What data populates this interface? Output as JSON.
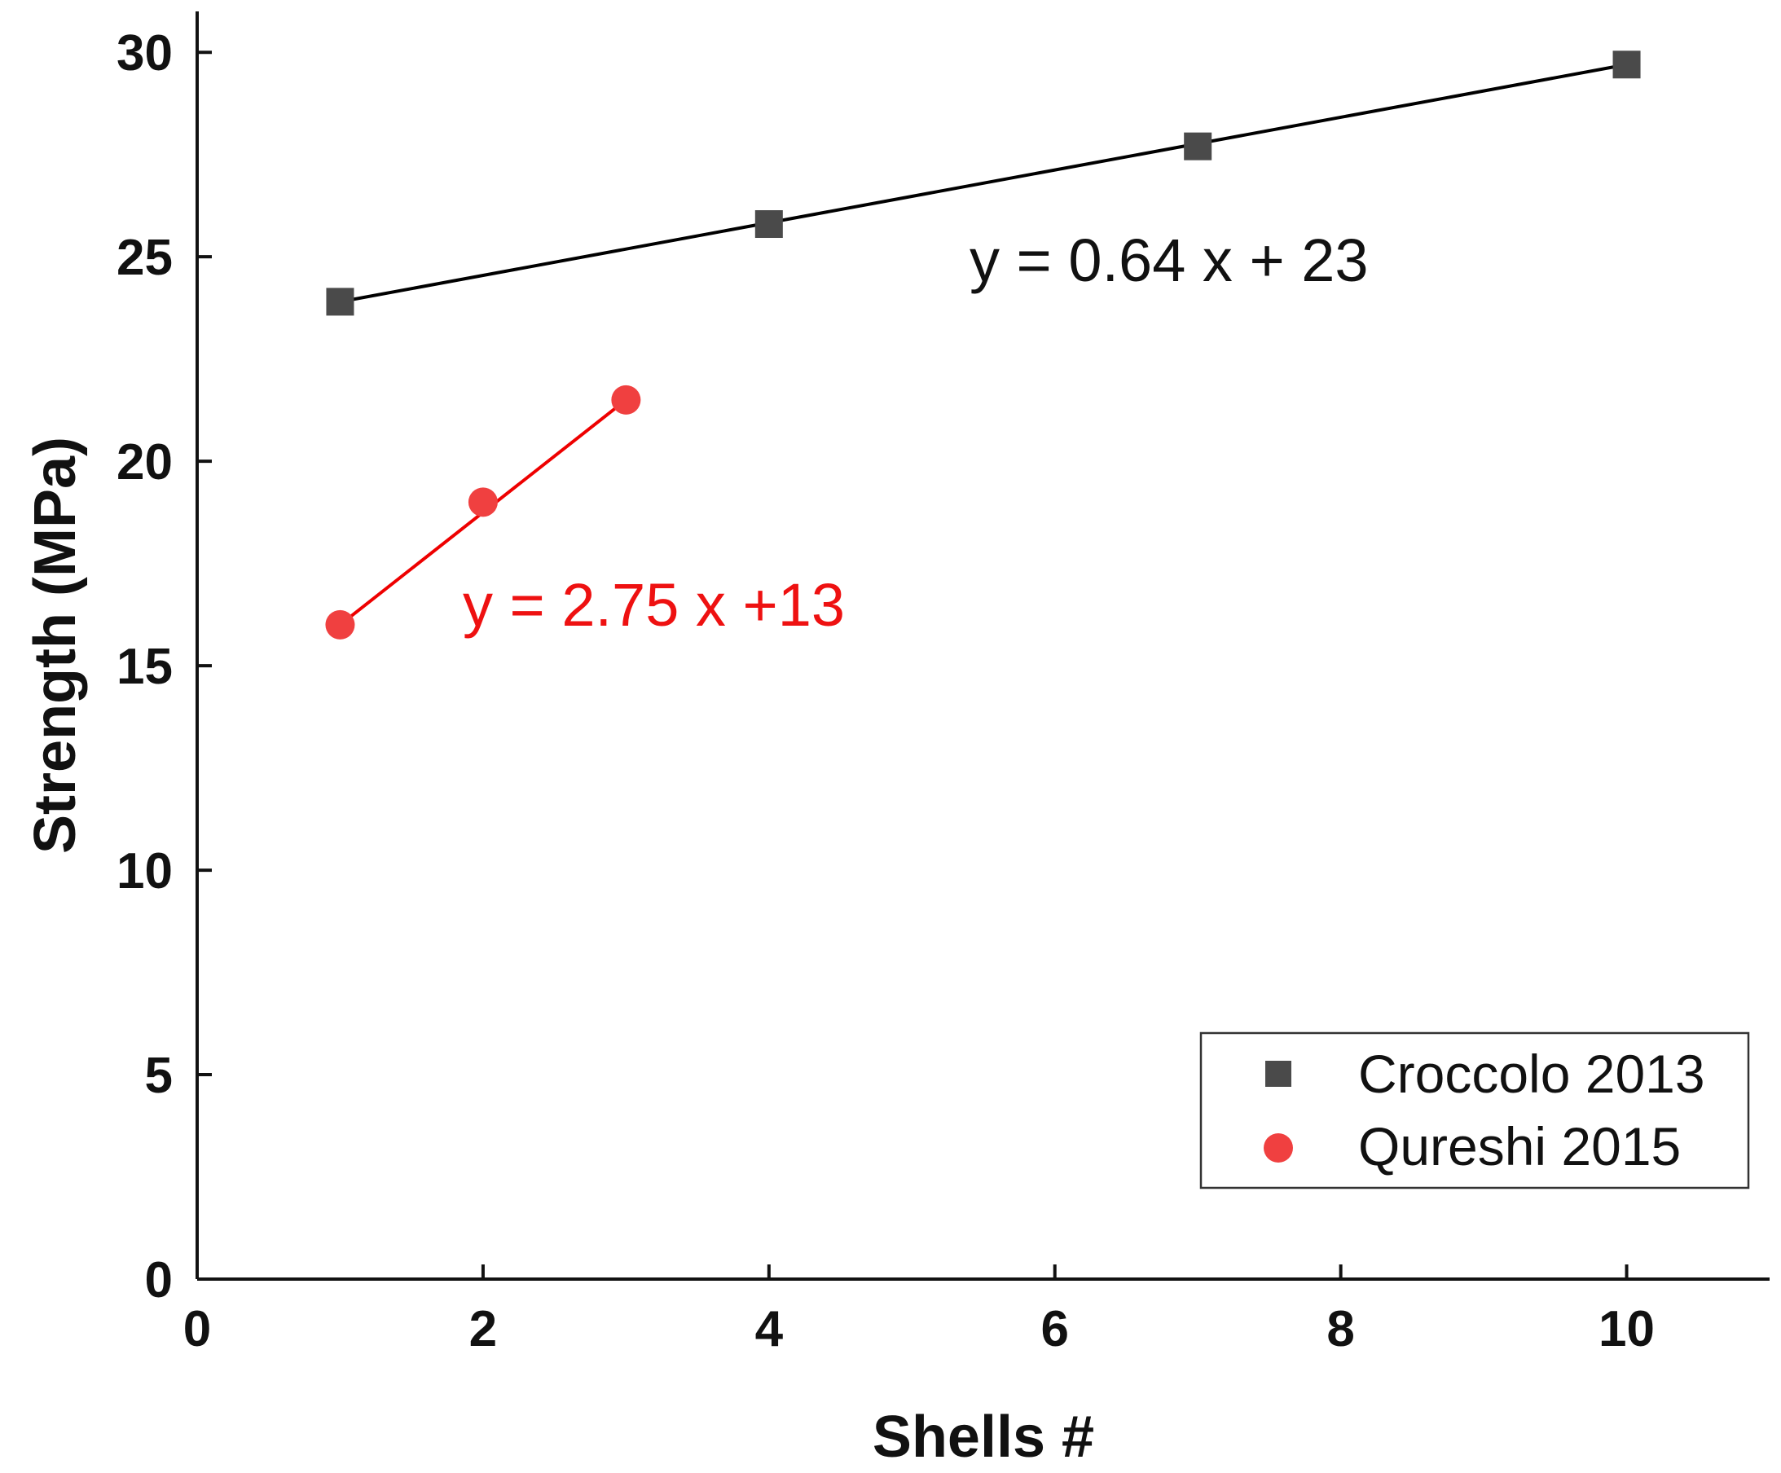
{
  "chart_data": {
    "type": "scatter",
    "xlabel": "Shells #",
    "ylabel": "Strength (MPa)",
    "xlim": [
      0,
      11
    ],
    "ylim": [
      0,
      31
    ],
    "x_ticks": [
      0,
      2,
      4,
      6,
      8,
      10
    ],
    "y_ticks": [
      0,
      5,
      10,
      15,
      20,
      25,
      30
    ],
    "grid": false,
    "legend_position": "bottom-right",
    "series": [
      {
        "name": "Croccolo 2013",
        "marker": "square",
        "color": "#4a4a4a",
        "line_color": "#000000",
        "x": [
          1,
          4,
          7,
          10
        ],
        "y": [
          23.9,
          25.8,
          27.7,
          29.7
        ],
        "fit": {
          "slope": 0.64,
          "intercept": 23,
          "label": "y = 0.64 x + 23"
        }
      },
      {
        "name": "Qureshi 2015",
        "marker": "circle",
        "color": "#f04040",
        "line_color": "#ee0000",
        "x": [
          1,
          2,
          3
        ],
        "y": [
          16,
          19,
          21.5
        ],
        "fit": {
          "slope": 2.75,
          "intercept": 13,
          "label": "y = 2.75 x +13"
        }
      }
    ]
  }
}
